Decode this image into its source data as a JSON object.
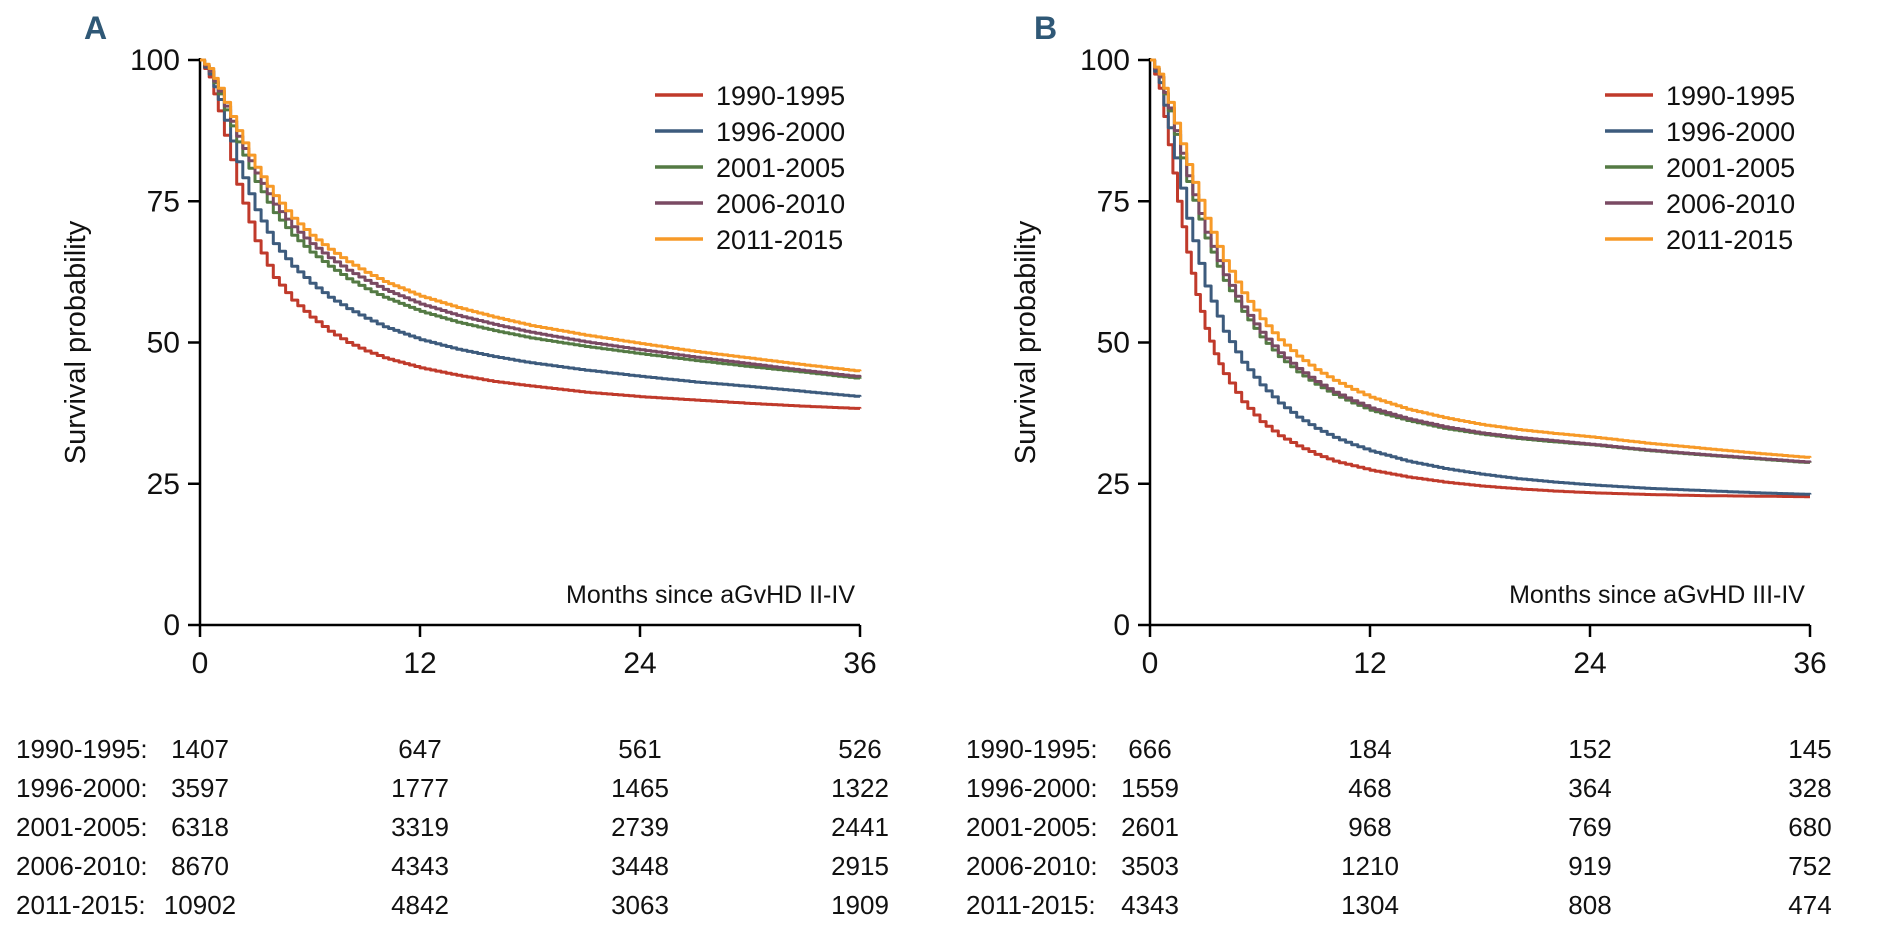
{
  "figure": {
    "background": "#ffffff",
    "panel_letter_color": "#2f5876",
    "axis_color": "#000000"
  },
  "chart_data": [
    {
      "type": "line",
      "panel_label": "A",
      "xlabel": "Months since aGvHD II-IV",
      "ylabel": "Survival probability",
      "xlim": [
        0,
        36
      ],
      "ylim": [
        0,
        100
      ],
      "xticks": [
        0,
        12,
        24,
        36
      ],
      "yticks": [
        0,
        25,
        50,
        75,
        100
      ],
      "grid": false,
      "legend_position": "top-right",
      "series": [
        {
          "name": "1990-1995",
          "color": "#c03a2b",
          "points": [
            [
              0,
              100
            ],
            [
              0.5,
              97
            ],
            [
              1,
              91
            ],
            [
              2,
              78
            ],
            [
              3,
              68
            ],
            [
              4,
              61.5
            ],
            [
              5,
              57.5
            ],
            [
              6,
              54.5
            ],
            [
              7,
              52
            ],
            [
              8,
              50
            ],
            [
              9,
              48.5
            ],
            [
              10,
              47.3
            ],
            [
              12,
              45.5
            ],
            [
              14,
              44.2
            ],
            [
              16,
              43.1
            ],
            [
              18,
              42.3
            ],
            [
              21,
              41.2
            ],
            [
              24,
              40.4
            ],
            [
              27,
              39.8
            ],
            [
              30,
              39.2
            ],
            [
              33,
              38.7
            ],
            [
              36,
              38.3
            ]
          ]
        },
        {
          "name": "1996-2000",
          "color": "#3d5b7d",
          "points": [
            [
              0,
              100
            ],
            [
              0.5,
              97.5
            ],
            [
              1,
              93
            ],
            [
              2,
              82
            ],
            [
              3,
              73.5
            ],
            [
              4,
              67.5
            ],
            [
              5,
              63.5
            ],
            [
              6,
              60.5
            ],
            [
              7,
              58
            ],
            [
              8,
              56
            ],
            [
              9,
              54.3
            ],
            [
              10,
              52.8
            ],
            [
              12,
              50.5
            ],
            [
              14,
              48.8
            ],
            [
              16,
              47.5
            ],
            [
              18,
              46.4
            ],
            [
              21,
              45.1
            ],
            [
              24,
              44
            ],
            [
              27,
              43
            ],
            [
              30,
              42.2
            ],
            [
              33,
              41.3
            ],
            [
              36,
              40.4
            ]
          ]
        },
        {
          "name": "2001-2005",
          "color": "#547a44",
          "points": [
            [
              0,
              100
            ],
            [
              0.5,
              98
            ],
            [
              1,
              94
            ],
            [
              2,
              85.5
            ],
            [
              3,
              78.5
            ],
            [
              4,
              73
            ],
            [
              5,
              69
            ],
            [
              6,
              66
            ],
            [
              7,
              63.5
            ],
            [
              8,
              61.3
            ],
            [
              9,
              59.5
            ],
            [
              10,
              58
            ],
            [
              12,
              55.5
            ],
            [
              14,
              53.6
            ],
            [
              16,
              52.1
            ],
            [
              18,
              50.8
            ],
            [
              21,
              49.3
            ],
            [
              24,
              48
            ],
            [
              27,
              46.8
            ],
            [
              30,
              45.7
            ],
            [
              33,
              44.7
            ],
            [
              36,
              43.6
            ]
          ]
        },
        {
          "name": "2006-2010",
          "color": "#7a4a63",
          "points": [
            [
              0,
              100
            ],
            [
              0.5,
              98
            ],
            [
              1,
              94.5
            ],
            [
              2,
              86.5
            ],
            [
              3,
              80
            ],
            [
              4,
              74.5
            ],
            [
              5,
              70.5
            ],
            [
              6,
              67.5
            ],
            [
              7,
              65
            ],
            [
              8,
              62.8
            ],
            [
              9,
              61
            ],
            [
              10,
              59.4
            ],
            [
              12,
              56.8
            ],
            [
              14,
              54.8
            ],
            [
              16,
              53.2
            ],
            [
              18,
              51.8
            ],
            [
              21,
              50.1
            ],
            [
              24,
              48.7
            ],
            [
              27,
              47.4
            ],
            [
              30,
              46.2
            ],
            [
              33,
              45
            ],
            [
              36,
              43.9
            ]
          ]
        },
        {
          "name": "2011-2015",
          "color": "#f79a28",
          "points": [
            [
              0,
              100
            ],
            [
              0.5,
              98.5
            ],
            [
              1,
              95
            ],
            [
              2,
              87.5
            ],
            [
              3,
              81
            ],
            [
              4,
              76
            ],
            [
              5,
              72
            ],
            [
              6,
              69
            ],
            [
              7,
              66.5
            ],
            [
              8,
              64.3
            ],
            [
              9,
              62.4
            ],
            [
              10,
              60.8
            ],
            [
              12,
              58.2
            ],
            [
              14,
              56.2
            ],
            [
              16,
              54.5
            ],
            [
              18,
              53
            ],
            [
              21,
              51.3
            ],
            [
              24,
              49.8
            ],
            [
              27,
              48.4
            ],
            [
              30,
              47.2
            ],
            [
              33,
              46
            ],
            [
              36,
              44.9
            ]
          ]
        }
      ],
      "risk_table": {
        "rows": [
          {
            "label": "1990-1995:",
            "values": [
              "1407",
              "647",
              "561",
              "526"
            ]
          },
          {
            "label": "1996-2000:",
            "values": [
              "3597",
              "1777",
              "1465",
              "1322"
            ]
          },
          {
            "label": "2001-2005:",
            "values": [
              "6318",
              "3319",
              "2739",
              "2441"
            ]
          },
          {
            "label": "2006-2010:",
            "values": [
              "8670",
              "4343",
              "3448",
              "2915"
            ]
          },
          {
            "label": "2011-2015:",
            "values": [
              "10902",
              "4842",
              "3063",
              "1909"
            ]
          }
        ]
      }
    },
    {
      "type": "line",
      "panel_label": "B",
      "xlabel": "Months since aGvHD III-IV",
      "ylabel": "Survival probability",
      "xlim": [
        0,
        36
      ],
      "ylim": [
        0,
        100
      ],
      "xticks": [
        0,
        12,
        24,
        36
      ],
      "yticks": [
        0,
        25,
        50,
        75,
        100
      ],
      "grid": false,
      "legend_position": "top-right",
      "series": [
        {
          "name": "1990-1995",
          "color": "#c03a2b",
          "points": [
            [
              0,
              100
            ],
            [
              0.5,
              95
            ],
            [
              1,
              85
            ],
            [
              1.5,
              75
            ],
            [
              2,
              66
            ],
            [
              2.5,
              58.5
            ],
            [
              3,
              52.5
            ],
            [
              3.5,
              48
            ],
            [
              4,
              44.5
            ],
            [
              5,
              39.5
            ],
            [
              6,
              36
            ],
            [
              7,
              33.5
            ],
            [
              8,
              31.7
            ],
            [
              9,
              30.2
            ],
            [
              10,
              29
            ],
            [
              11,
              28.2
            ],
            [
              12,
              27.4
            ],
            [
              14,
              26.2
            ],
            [
              16,
              25.3
            ],
            [
              18,
              24.6
            ],
            [
              20,
              24.1
            ],
            [
              22,
              23.7
            ],
            [
              24,
              23.4
            ],
            [
              27,
              23.1
            ],
            [
              30,
              22.9
            ],
            [
              33,
              22.8
            ],
            [
              36,
              22.7
            ]
          ]
        },
        {
          "name": "1996-2000",
          "color": "#3d5b7d",
          "points": [
            [
              0,
              100
            ],
            [
              0.5,
              96
            ],
            [
              1,
              88
            ],
            [
              2,
              72
            ],
            [
              3,
              60
            ],
            [
              4,
              52
            ],
            [
              5,
              46.5
            ],
            [
              6,
              42.5
            ],
            [
              7,
              39.3
            ],
            [
              8,
              36.8
            ],
            [
              9,
              34.8
            ],
            [
              10,
              33.2
            ],
            [
              11,
              31.9
            ],
            [
              12,
              30.8
            ],
            [
              14,
              29
            ],
            [
              16,
              27.7
            ],
            [
              18,
              26.7
            ],
            [
              20,
              25.9
            ],
            [
              22,
              25.3
            ],
            [
              24,
              24.8
            ],
            [
              27,
              24.2
            ],
            [
              30,
              23.8
            ],
            [
              33,
              23.4
            ],
            [
              36,
              23.1
            ]
          ]
        },
        {
          "name": "2001-2005",
          "color": "#547a44",
          "points": [
            [
              0,
              100
            ],
            [
              0.5,
              97
            ],
            [
              1,
              91
            ],
            [
              2,
              78.5
            ],
            [
              3,
              68.5
            ],
            [
              4,
              61
            ],
            [
              5,
              55.5
            ],
            [
              6,
              51
            ],
            [
              7,
              47.5
            ],
            [
              8,
              44.8
            ],
            [
              9,
              42.6
            ],
            [
              10,
              40.8
            ],
            [
              11,
              39.3
            ],
            [
              12,
              38
            ],
            [
              14,
              36.2
            ],
            [
              16,
              34.8
            ],
            [
              18,
              33.8
            ],
            [
              20,
              33
            ],
            [
              22,
              32.4
            ],
            [
              24,
              31.9
            ],
            [
              27,
              30.9
            ],
            [
              30,
              30.1
            ],
            [
              33,
              29.4
            ],
            [
              36,
              28.7
            ]
          ]
        },
        {
          "name": "2006-2010",
          "color": "#7a4a63",
          "points": [
            [
              0,
              100
            ],
            [
              0.5,
              97
            ],
            [
              1,
              91.5
            ],
            [
              2,
              79.5
            ],
            [
              3,
              69.5
            ],
            [
              4,
              62
            ],
            [
              5,
              56.3
            ],
            [
              6,
              51.8
            ],
            [
              7,
              48.2
            ],
            [
              8,
              45.4
            ],
            [
              9,
              43.1
            ],
            [
              10,
              41.2
            ],
            [
              11,
              39.7
            ],
            [
              12,
              38.4
            ],
            [
              14,
              36.5
            ],
            [
              16,
              35.1
            ],
            [
              18,
              34
            ],
            [
              20,
              33.2
            ],
            [
              22,
              32.6
            ],
            [
              24,
              32
            ],
            [
              27,
              31
            ],
            [
              30,
              30.2
            ],
            [
              33,
              29.5
            ],
            [
              36,
              28.8
            ]
          ]
        },
        {
          "name": "2011-2015",
          "color": "#f79a28",
          "points": [
            [
              0,
              100
            ],
            [
              0.5,
              97.5
            ],
            [
              1,
              92.5
            ],
            [
              2,
              81.5
            ],
            [
              3,
              72
            ],
            [
              4,
              64.5
            ],
            [
              5,
              58.8
            ],
            [
              6,
              54.2
            ],
            [
              7,
              50.5
            ],
            [
              8,
              47.6
            ],
            [
              9,
              45.2
            ],
            [
              10,
              43.3
            ],
            [
              11,
              41.7
            ],
            [
              12,
              40.3
            ],
            [
              14,
              38.2
            ],
            [
              16,
              36.7
            ],
            [
              18,
              35.5
            ],
            [
              20,
              34.6
            ],
            [
              22,
              33.9
            ],
            [
              24,
              33.3
            ],
            [
              27,
              32.2
            ],
            [
              30,
              31.3
            ],
            [
              33,
              30.4
            ],
            [
              36,
              29.6
            ]
          ]
        }
      ],
      "risk_table": {
        "rows": [
          {
            "label": "1990-1995:",
            "values": [
              "666",
              "184",
              "152",
              "145"
            ]
          },
          {
            "label": "1996-2000:",
            "values": [
              "1559",
              "468",
              "364",
              "328"
            ]
          },
          {
            "label": "2001-2005:",
            "values": [
              "2601",
              "968",
              "769",
              "680"
            ]
          },
          {
            "label": "2006-2010:",
            "values": [
              "3503",
              "1210",
              "919",
              "752"
            ]
          },
          {
            "label": "2011-2015:",
            "values": [
              "4343",
              "1304",
              "808",
              "474"
            ]
          }
        ]
      }
    }
  ]
}
